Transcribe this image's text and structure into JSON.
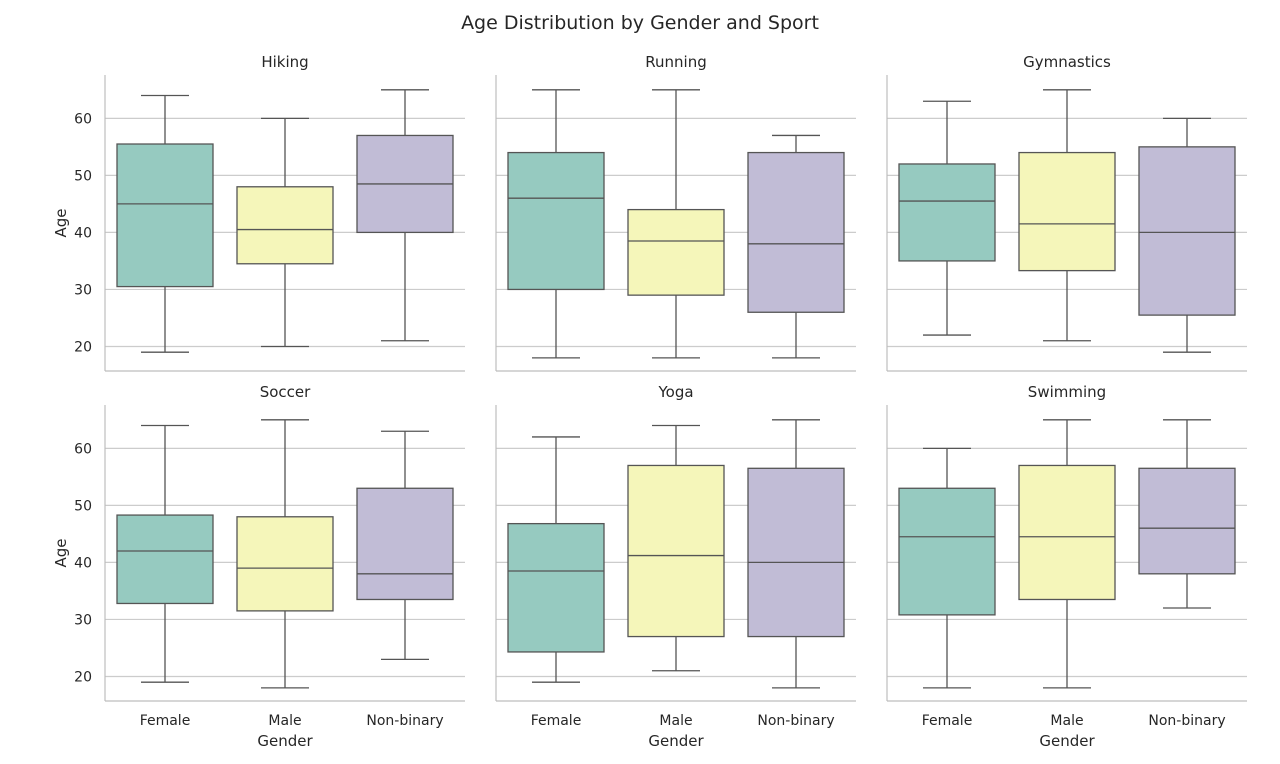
{
  "chart_data": {
    "type": "boxplot",
    "title": "Age Distribution by Gender and Sport",
    "xlabel": "Gender",
    "ylabel": "Age",
    "categories": [
      "Female",
      "Male",
      "Non-binary"
    ],
    "colors": [
      "#96cac0",
      "#f5f6ba",
      "#c1bcd6"
    ],
    "line_color": "#555555",
    "grid": true,
    "ylim": [
      15.7,
      67.6
    ],
    "yticks": [
      20,
      30,
      40,
      50,
      60
    ],
    "layout": "2 rows x 3 columns, shared axes",
    "panels": [
      {
        "title": "Hiking",
        "boxes": [
          {
            "category": "Female",
            "whisker_low": 19,
            "q1": 30.5,
            "median": 45,
            "q3": 55.5,
            "whisker_high": 64
          },
          {
            "category": "Male",
            "whisker_low": 20,
            "q1": 34.5,
            "median": 40.5,
            "q3": 48,
            "whisker_high": 60
          },
          {
            "category": "Non-binary",
            "whisker_low": 21,
            "q1": 40,
            "median": 48.5,
            "q3": 57,
            "whisker_high": 65
          }
        ]
      },
      {
        "title": "Running",
        "boxes": [
          {
            "category": "Female",
            "whisker_low": 18,
            "q1": 30,
            "median": 46,
            "q3": 54,
            "whisker_high": 65
          },
          {
            "category": "Male",
            "whisker_low": 18,
            "q1": 29,
            "median": 38.5,
            "q3": 44,
            "whisker_high": 65
          },
          {
            "category": "Non-binary",
            "whisker_low": 18,
            "q1": 26,
            "median": 38,
            "q3": 54,
            "whisker_high": 57
          }
        ]
      },
      {
        "title": "Gymnastics",
        "boxes": [
          {
            "category": "Female",
            "whisker_low": 22,
            "q1": 35,
            "median": 45.5,
            "q3": 52,
            "whisker_high": 63
          },
          {
            "category": "Male",
            "whisker_low": 21,
            "q1": 33.3,
            "median": 41.5,
            "q3": 54,
            "whisker_high": 65
          },
          {
            "category": "Non-binary",
            "whisker_low": 19,
            "q1": 25.5,
            "median": 40,
            "q3": 55,
            "whisker_high": 60
          }
        ]
      },
      {
        "title": "Soccer",
        "boxes": [
          {
            "category": "Female",
            "whisker_low": 19,
            "q1": 32.8,
            "median": 42,
            "q3": 48.3,
            "whisker_high": 64
          },
          {
            "category": "Male",
            "whisker_low": 18,
            "q1": 31.5,
            "median": 39,
            "q3": 48,
            "whisker_high": 65
          },
          {
            "category": "Non-binary",
            "whisker_low": 23,
            "q1": 33.5,
            "median": 38,
            "q3": 53,
            "whisker_high": 63
          }
        ]
      },
      {
        "title": "Yoga",
        "boxes": [
          {
            "category": "Female",
            "whisker_low": 19,
            "q1": 24.3,
            "median": 38.5,
            "q3": 46.8,
            "whisker_high": 62
          },
          {
            "category": "Male",
            "whisker_low": 21,
            "q1": 27,
            "median": 41.2,
            "q3": 57,
            "whisker_high": 64
          },
          {
            "category": "Non-binary",
            "whisker_low": 18,
            "q1": 27,
            "median": 40,
            "q3": 56.5,
            "whisker_high": 65
          }
        ]
      },
      {
        "title": "Swimming",
        "boxes": [
          {
            "category": "Female",
            "whisker_low": 18,
            "q1": 30.8,
            "median": 44.5,
            "q3": 53,
            "whisker_high": 60
          },
          {
            "category": "Male",
            "whisker_low": 18,
            "q1": 33.5,
            "median": 44.5,
            "q3": 57,
            "whisker_high": 65
          },
          {
            "category": "Non-binary",
            "whisker_low": 32,
            "q1": 38,
            "median": 46,
            "q3": 56.5,
            "whisker_high": 65
          }
        ]
      }
    ]
  }
}
